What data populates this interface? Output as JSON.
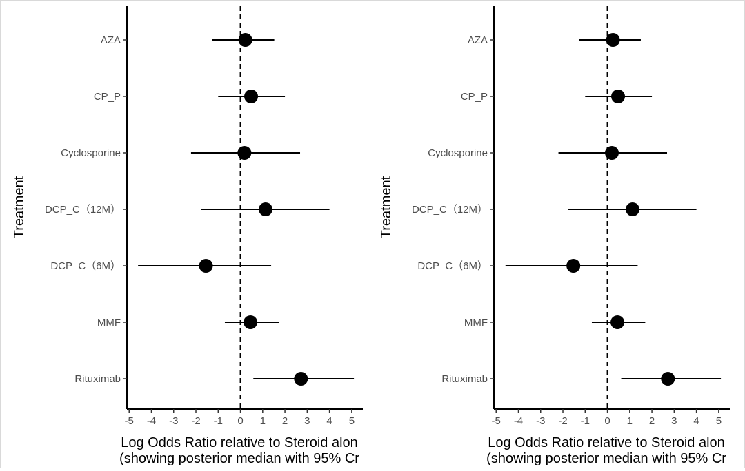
{
  "chart_data": [
    {
      "type": "forest",
      "panel": "left",
      "ylabel": "Treatment",
      "xlabel_line1": "Log Odds Ratio relative to Steroid alon",
      "xlabel_line2": "(showing posterior median with 95% Cr",
      "xlim": [
        -5.1,
        5.5
      ],
      "x_ticks": [
        -5,
        -4,
        -3,
        -2,
        -1,
        0,
        1,
        2,
        3,
        4,
        5
      ],
      "x_tick_labels": [
        "-5",
        "-4",
        "-3",
        "-2",
        "-1",
        "0",
        "1",
        "2",
        "3",
        "4",
        "5"
      ],
      "reference_line": 0,
      "categories": [
        "AZA",
        "CP_P",
        "Cyclosporine",
        "DCP_C（12M）",
        "DCP_C（6M）",
        "MMF",
        "Rituximab"
      ],
      "median": [
        0.22,
        0.48,
        0.18,
        1.13,
        -1.55,
        0.45,
        2.72
      ],
      "lower": [
        -1.28,
        -1.0,
        -2.22,
        -1.78,
        -4.6,
        -0.7,
        0.58
      ],
      "upper": [
        1.52,
        2.0,
        2.68,
        4.0,
        1.38,
        1.72,
        5.1
      ]
    },
    {
      "type": "forest",
      "panel": "right",
      "ylabel": "Treatment",
      "xlabel_line1": "Log Odds Ratio relative to Steroid alon",
      "xlabel_line2": "(showing posterior median with 95% Cr",
      "xlim": [
        -5.1,
        5.5
      ],
      "x_ticks": [
        -5,
        -4,
        -3,
        -2,
        -1,
        0,
        1,
        2,
        3,
        4,
        5
      ],
      "x_tick_labels": [
        "-5",
        "-4",
        "-3",
        "-2",
        "-1",
        "0",
        "1",
        "2",
        "3",
        "4",
        "5"
      ],
      "reference_line": 0,
      "categories": [
        "AZA",
        "CP_P",
        "Cyclosporine",
        "DCP_C（12M）",
        "DCP_C（6M）",
        "MMF",
        "Rituximab"
      ],
      "median": [
        0.25,
        0.48,
        0.2,
        1.13,
        -1.53,
        0.45,
        2.72
      ],
      "lower": [
        -1.28,
        -1.0,
        -2.2,
        -1.76,
        -4.58,
        -0.7,
        0.62
      ],
      "upper": [
        1.5,
        2.0,
        2.68,
        4.0,
        1.36,
        1.7,
        5.1
      ]
    }
  ]
}
